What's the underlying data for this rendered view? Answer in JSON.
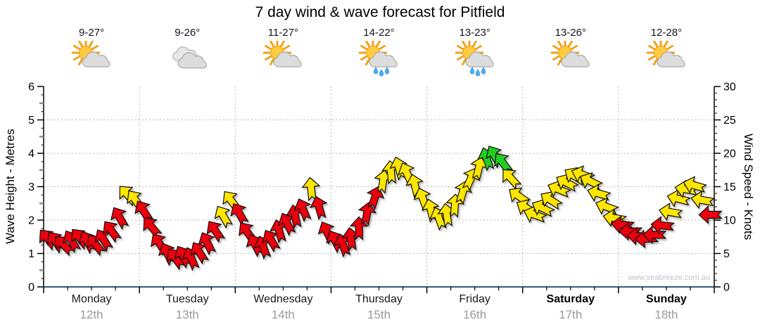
{
  "title": "7 day wind & wave forecast for Pitfield",
  "watermark": "www.seabreeze.com.au",
  "days": [
    {
      "name": "Monday",
      "date": "12th",
      "temp": "9-27°",
      "icon": "partly-cloudy",
      "bold": false
    },
    {
      "name": "Tuesday",
      "date": "13th",
      "temp": "9-26°",
      "icon": "cloudy",
      "bold": false
    },
    {
      "name": "Wednesday",
      "date": "14th",
      "temp": "11-27°",
      "icon": "partly-cloudy",
      "bold": false
    },
    {
      "name": "Thursday",
      "date": "15th",
      "temp": "14-22°",
      "icon": "showers",
      "bold": false
    },
    {
      "name": "Friday",
      "date": "16th",
      "temp": "13-23°",
      "icon": "showers",
      "bold": false
    },
    {
      "name": "Saturday",
      "date": "17th",
      "temp": "13-26°",
      "icon": "partly-cloudy",
      "bold": true
    },
    {
      "name": "Sunday",
      "date": "18th",
      "temp": "12-28°",
      "icon": "partly-cloudy",
      "bold": true
    }
  ],
  "chart_data": {
    "type": "scatter",
    "title": "7 day wind & wave forecast for Pitfield",
    "x_categories": [
      "Monday 12th",
      "Tuesday 13th",
      "Wednesday 14th",
      "Thursday 15th",
      "Friday 16th",
      "Saturday 17th",
      "Sunday 18th"
    ],
    "axes": {
      "left": {
        "label": "Wave Height - Metres",
        "min": 0,
        "max": 6,
        "ticks": [
          0,
          1,
          2,
          3,
          4,
          5,
          6
        ]
      },
      "right": {
        "label": "Wind Speed - Knots",
        "min": 0,
        "max": 30,
        "ticks": [
          0,
          5,
          10,
          15,
          20,
          25,
          30
        ]
      }
    },
    "grid": true,
    "colors": {
      "r": "#ec0008",
      "y": "#ffe600",
      "g": "#22cc22",
      "bottom_axis": "#2f5a78",
      "grid": "#b8b8b8",
      "date_text": "#9a9a9a",
      "watermark": "#c4c4c4"
    },
    "arrow_columns": [
      "day_fraction",
      "wind_knots",
      "direction_deg_from_up",
      "color_key"
    ],
    "arrows": [
      [
        0.042,
        7.2,
        -40,
        "r"
      ],
      [
        0.125,
        6.8,
        -35,
        "r"
      ],
      [
        0.208,
        6.3,
        -45,
        "r"
      ],
      [
        0.292,
        6.9,
        -30,
        "r"
      ],
      [
        0.375,
        7.3,
        -40,
        "r"
      ],
      [
        0.458,
        6.8,
        -28,
        "r"
      ],
      [
        0.542,
        6.4,
        -38,
        "r"
      ],
      [
        0.625,
        7.1,
        -32,
        "r"
      ],
      [
        0.708,
        8.4,
        -36,
        "r"
      ],
      [
        0.792,
        10.4,
        -30,
        "r"
      ],
      [
        0.875,
        13.8,
        -42,
        "y"
      ],
      [
        0.958,
        13.0,
        -35,
        "y"
      ],
      [
        1.042,
        11.4,
        -32,
        "r"
      ],
      [
        1.125,
        9.0,
        -40,
        "r"
      ],
      [
        1.208,
        6.5,
        -34,
        "r"
      ],
      [
        1.292,
        5.0,
        -26,
        "r"
      ],
      [
        1.375,
        4.3,
        -36,
        "r"
      ],
      [
        1.458,
        4.6,
        -30,
        "r"
      ],
      [
        1.542,
        4.3,
        -22,
        "r"
      ],
      [
        1.625,
        5.2,
        -32,
        "r"
      ],
      [
        1.708,
        6.6,
        -26,
        "r"
      ],
      [
        1.792,
        8.4,
        -34,
        "r"
      ],
      [
        1.875,
        10.6,
        -30,
        "y"
      ],
      [
        1.958,
        12.9,
        -36,
        "y"
      ],
      [
        2.042,
        11.0,
        -30,
        "r"
      ],
      [
        2.125,
        8.2,
        -36,
        "r"
      ],
      [
        2.208,
        6.3,
        -28,
        "r"
      ],
      [
        2.292,
        6.0,
        -20,
        "r"
      ],
      [
        2.375,
        7.0,
        -30,
        "r"
      ],
      [
        2.458,
        8.4,
        -16,
        "r"
      ],
      [
        2.542,
        9.5,
        -26,
        "r"
      ],
      [
        2.625,
        10.6,
        -12,
        "r"
      ],
      [
        2.708,
        11.6,
        -22,
        "r"
      ],
      [
        2.792,
        14.7,
        -6,
        "y"
      ],
      [
        2.875,
        11.9,
        -16,
        "r"
      ],
      [
        2.958,
        8.2,
        -26,
        "r"
      ],
      [
        3.042,
        6.9,
        -28,
        "r"
      ],
      [
        3.125,
        6.3,
        -18,
        "r"
      ],
      [
        3.208,
        7.2,
        -8,
        "r"
      ],
      [
        3.292,
        8.8,
        0,
        "r"
      ],
      [
        3.375,
        11.0,
        10,
        "r"
      ],
      [
        3.458,
        13.4,
        18,
        "r"
      ],
      [
        3.542,
        15.8,
        8,
        "y"
      ],
      [
        3.625,
        17.2,
        -6,
        "y"
      ],
      [
        3.708,
        17.8,
        -16,
        "y"
      ],
      [
        3.792,
        17.0,
        -24,
        "y"
      ],
      [
        3.875,
        15.2,
        -14,
        "y"
      ],
      [
        3.958,
        13.2,
        -20,
        "y"
      ],
      [
        4.042,
        11.5,
        -14,
        "y"
      ],
      [
        4.125,
        10.3,
        -20,
        "y"
      ],
      [
        4.208,
        10.8,
        -8,
        "y"
      ],
      [
        4.292,
        12.2,
        4,
        "y"
      ],
      [
        4.375,
        14.2,
        16,
        "y"
      ],
      [
        4.458,
        16.2,
        24,
        "y"
      ],
      [
        4.542,
        17.8,
        14,
        "y"
      ],
      [
        4.625,
        19.2,
        -18,
        "g"
      ],
      [
        4.708,
        19.6,
        -30,
        "g"
      ],
      [
        4.792,
        18.6,
        -36,
        "g"
      ],
      [
        4.875,
        16.3,
        -42,
        "y"
      ],
      [
        4.958,
        13.6,
        -55,
        "y"
      ],
      [
        5.042,
        11.8,
        -60,
        "y"
      ],
      [
        5.125,
        10.8,
        -70,
        "y"
      ],
      [
        5.208,
        11.8,
        -64,
        "y"
      ],
      [
        5.292,
        13.0,
        -58,
        "y"
      ],
      [
        5.375,
        14.6,
        -68,
        "y"
      ],
      [
        5.458,
        15.6,
        -62,
        "y"
      ],
      [
        5.542,
        16.6,
        -58,
        "y"
      ],
      [
        5.625,
        16.8,
        -70,
        "y"
      ],
      [
        5.708,
        15.8,
        -64,
        "y"
      ],
      [
        5.792,
        14.0,
        -74,
        "y"
      ],
      [
        5.875,
        12.0,
        -70,
        "y"
      ],
      [
        5.958,
        10.3,
        -80,
        "y"
      ],
      [
        6.042,
        9.3,
        -84,
        "r"
      ],
      [
        6.125,
        8.3,
        -90,
        "r"
      ],
      [
        6.208,
        7.6,
        -86,
        "r"
      ],
      [
        6.292,
        7.2,
        -94,
        "r"
      ],
      [
        6.375,
        7.8,
        -90,
        "r"
      ],
      [
        6.458,
        9.2,
        -84,
        "r"
      ],
      [
        6.542,
        11.2,
        -80,
        "y"
      ],
      [
        6.625,
        13.2,
        -76,
        "y"
      ],
      [
        6.708,
        14.6,
        -80,
        "y"
      ],
      [
        6.792,
        15.2,
        -74,
        "y"
      ],
      [
        6.875,
        13.0,
        -80,
        "y"
      ],
      [
        6.958,
        10.8,
        -90,
        "r"
      ]
    ]
  }
}
